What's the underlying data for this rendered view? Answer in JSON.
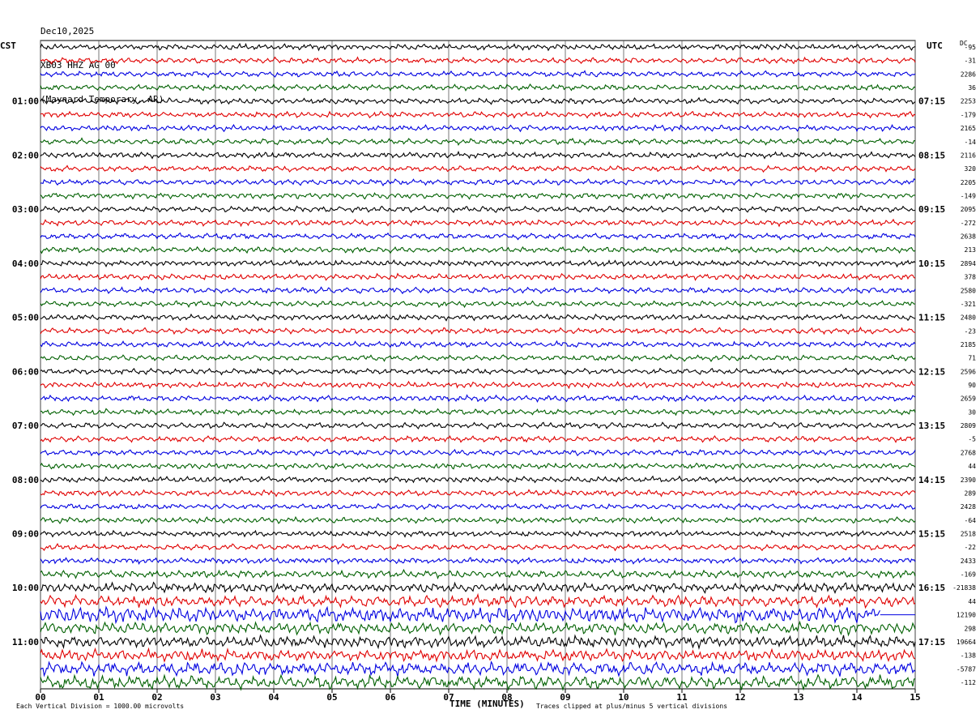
{
  "header": {
    "date": "Dec10,2025",
    "channel": "XB03 HHZ AG 00",
    "location": "(Maynard Temporary, AR)"
  },
  "left_tz": "CST",
  "right_tz": "UTC",
  "dc_label": "DC",
  "footer": {
    "scale_note": "Each Vertical Division = 1000.00 microvolts",
    "xlabel": "TIME (MINUTES)",
    "clip_note": "Traces clipped at plus/minus 5 vertical divisions"
  },
  "colors": {
    "trace_cycle": [
      "#000000",
      "#e00000",
      "#0000e0",
      "#006000"
    ]
  },
  "chart_data": {
    "type": "line",
    "title": "",
    "xlabel": "TIME (MINUTES)",
    "xlim": [
      0,
      15
    ],
    "x_ticks": [
      "00",
      "01",
      "02",
      "03",
      "04",
      "05",
      "06",
      "07",
      "08",
      "09",
      "10",
      "11",
      "12",
      "13",
      "14",
      "15"
    ],
    "rows": 48,
    "minutes_per_row": 15,
    "left_hour_labels": [
      {
        "row": 4,
        "label": "01:00"
      },
      {
        "row": 8,
        "label": "02:00"
      },
      {
        "row": 12,
        "label": "03:00"
      },
      {
        "row": 16,
        "label": "04:00"
      },
      {
        "row": 20,
        "label": "05:00"
      },
      {
        "row": 24,
        "label": "06:00"
      },
      {
        "row": 28,
        "label": "07:00"
      },
      {
        "row": 32,
        "label": "08:00"
      },
      {
        "row": 36,
        "label": "09:00"
      },
      {
        "row": 40,
        "label": "10:00"
      },
      {
        "row": 44,
        "label": "11:00"
      }
    ],
    "right_hour_labels": [
      {
        "row": 4,
        "label": "07:15"
      },
      {
        "row": 8,
        "label": "08:15"
      },
      {
        "row": 12,
        "label": "09:15"
      },
      {
        "row": 16,
        "label": "10:15"
      },
      {
        "row": 20,
        "label": "11:15"
      },
      {
        "row": 24,
        "label": "12:15"
      },
      {
        "row": 28,
        "label": "13:15"
      },
      {
        "row": 32,
        "label": "14:15"
      },
      {
        "row": 36,
        "label": "15:15"
      },
      {
        "row": 40,
        "label": "16:15"
      },
      {
        "row": 44,
        "label": "17:15"
      }
    ],
    "dc_offsets": [
      "-95",
      "-31",
      "2286",
      "36",
      "2253",
      "-179",
      "2165",
      "-14",
      "2116",
      "320",
      "2205",
      "-149",
      "2095",
      "-272",
      "2638",
      "213",
      "2894",
      "378",
      "2580",
      "-321",
      "2480",
      "-23",
      "2185",
      "71",
      "2596",
      "90",
      "2659",
      "30",
      "2809",
      "-5",
      "2768",
      "44",
      "2390",
      "289",
      "2428",
      "-64",
      "2518",
      "-22",
      "2433",
      "-169",
      "-21838",
      "44",
      "12190",
      "298",
      "19664",
      "-138",
      "-5787",
      "-112"
    ],
    "row_amplitude": [
      3,
      3,
      3,
      3,
      3,
      3,
      3,
      3,
      3,
      3,
      3,
      3,
      3,
      3,
      3,
      3,
      3,
      3,
      3,
      3,
      3,
      3,
      3,
      3,
      3,
      3,
      3,
      3,
      3,
      3,
      3,
      3,
      3,
      3,
      3,
      3,
      3,
      3,
      3,
      4,
      5,
      6,
      8,
      6,
      6,
      6,
      7,
      7
    ],
    "truncated_rows": [
      {
        "row": 42,
        "end_minute": 14.4
      }
    ]
  }
}
